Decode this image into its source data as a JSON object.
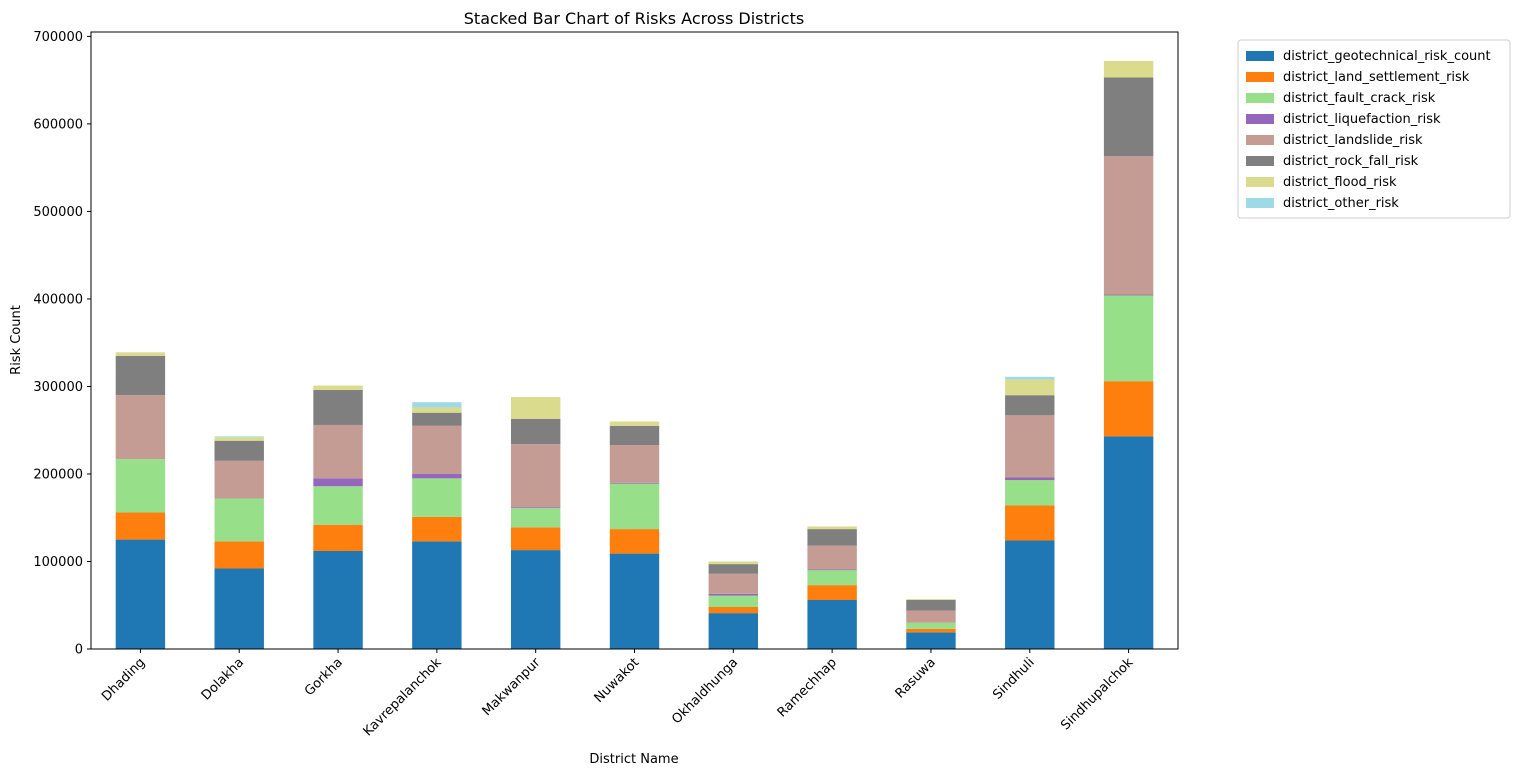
{
  "chart_data": {
    "type": "bar",
    "stacked": true,
    "title": "Stacked Bar Chart of Risks Across Districts",
    "xlabel": "District Name",
    "ylabel": "Risk Count",
    "ylim": [
      0,
      705000
    ],
    "yticks": [
      0,
      100000,
      200000,
      300000,
      400000,
      500000,
      600000,
      700000
    ],
    "grid": false,
    "legend_placement": "outside-top-right",
    "categories": [
      "Dhading",
      "Dolakha",
      "Gorkha",
      "Kavrepalanchok",
      "Makwanpur",
      "Nuwakot",
      "Okhaldhunga",
      "Ramechhap",
      "Rasuwa",
      "Sindhuli",
      "Sindhupalchok"
    ],
    "series": [
      {
        "name": "district_geotechnical_risk_count",
        "color": "#1f77b4",
        "values": [
          125000,
          92000,
          112000,
          123000,
          113000,
          109000,
          41000,
          56000,
          19000,
          124000,
          243000
        ]
      },
      {
        "name": "district_land_settlement_risk",
        "color": "#ff7f0e",
        "values": [
          31000,
          31000,
          30000,
          28000,
          26000,
          28000,
          7000,
          17000,
          4000,
          40000,
          63000
        ]
      },
      {
        "name": "district_fault_crack_risk",
        "color": "#98df8a",
        "values": [
          61000,
          49000,
          44000,
          44000,
          22000,
          52000,
          13000,
          17000,
          7000,
          29000,
          98000
        ]
      },
      {
        "name": "district_liquefaction_risk",
        "color": "#9467bd",
        "values": [
          0,
          0,
          9000,
          5000,
          1000,
          1000,
          2000,
          1000,
          0,
          3000,
          1000
        ]
      },
      {
        "name": "district_landslide_risk",
        "color": "#c49c94",
        "values": [
          73000,
          43000,
          61000,
          55000,
          72000,
          43000,
          23000,
          27000,
          14000,
          71000,
          158000
        ]
      },
      {
        "name": "district_rock_fall_risk",
        "color": "#7f7f7f",
        "values": [
          45000,
          23000,
          40000,
          15000,
          29000,
          22000,
          11000,
          19000,
          12000,
          23000,
          90000
        ]
      },
      {
        "name": "district_flood_risk",
        "color": "#dbdb8d",
        "values": [
          4000,
          4000,
          5000,
          6000,
          25000,
          5000,
          3000,
          3000,
          1000,
          18000,
          19000
        ]
      },
      {
        "name": "district_other_risk",
        "color": "#9edae5",
        "values": [
          0,
          1000,
          0,
          6000,
          0,
          0,
          0,
          0,
          0,
          3000,
          0
        ]
      }
    ]
  }
}
